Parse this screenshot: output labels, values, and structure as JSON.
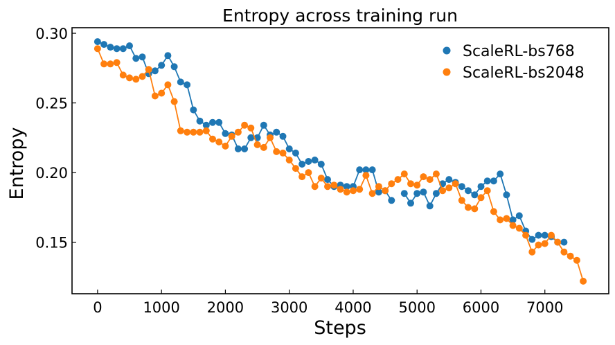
{
  "chart_data": {
    "type": "line",
    "title": "Entropy across training run",
    "xlabel": "Steps",
    "ylabel": "Entropy",
    "xlim": [
      -400,
      8000
    ],
    "ylim": [
      0.113,
      0.304
    ],
    "xticks": [
      0,
      1000,
      2000,
      3000,
      4000,
      5000,
      6000,
      7000
    ],
    "xtick_labels": [
      "0",
      "1000",
      "2000",
      "3000",
      "4000",
      "5000",
      "6000",
      "7000"
    ],
    "yticks": [
      0.15,
      0.2,
      0.25,
      0.3
    ],
    "ytick_labels": [
      "0.15",
      "0.20",
      "0.25",
      "0.30"
    ],
    "grid": false,
    "legend_position": "top-right",
    "series": [
      {
        "name": "ScaleRL-bs768",
        "color": "#1f77b4",
        "x": [
          0,
          100,
          200,
          300,
          400,
          500,
          600,
          700,
          800,
          900,
          1000,
          1100,
          1200,
          1300,
          1400,
          1500,
          1600,
          1700,
          1800,
          1900,
          2000,
          2100,
          2200,
          2300,
          2400,
          2500,
          2600,
          2700,
          2800,
          2900,
          3000,
          3100,
          3200,
          3300,
          3400,
          3500,
          3600,
          3700,
          3800,
          3900,
          4000,
          4100,
          4200,
          4300,
          4400,
          4500,
          4600,
          null,
          4800,
          4900,
          5000,
          5100,
          5200,
          5300,
          5400,
          5500,
          5600,
          5700,
          5800,
          5900,
          6000,
          6100,
          6200,
          6300,
          6400,
          6500,
          6600,
          6700,
          6800,
          6900,
          7000,
          7100,
          7200,
          7300
        ],
        "y": [
          0.294,
          0.292,
          0.29,
          0.289,
          0.289,
          0.291,
          0.282,
          0.283,
          0.271,
          0.273,
          0.277,
          0.284,
          0.276,
          0.265,
          0.263,
          0.245,
          0.237,
          0.234,
          0.236,
          0.236,
          0.228,
          0.227,
          0.217,
          0.217,
          0.225,
          0.225,
          0.234,
          0.227,
          0.229,
          0.226,
          0.217,
          0.214,
          0.206,
          0.208,
          0.209,
          0.206,
          0.195,
          0.19,
          0.191,
          0.19,
          0.19,
          0.202,
          0.202,
          0.202,
          0.186,
          0.187,
          0.18,
          null,
          0.185,
          0.178,
          0.185,
          0.186,
          0.176,
          0.185,
          0.192,
          0.195,
          0.193,
          0.19,
          0.187,
          0.184,
          0.19,
          0.194,
          0.194,
          0.199,
          0.184,
          0.166,
          0.169,
          0.158,
          0.152,
          0.155,
          0.155,
          0.154,
          0.15,
          0.15
        ]
      },
      {
        "name": "ScaleRL-bs2048",
        "color": "#ff7f0e",
        "x": [
          0,
          100,
          200,
          300,
          400,
          500,
          600,
          700,
          800,
          900,
          1000,
          1100,
          1200,
          1300,
          1400,
          1500,
          1600,
          1700,
          1800,
          1900,
          2000,
          2100,
          2200,
          2300,
          2400,
          2500,
          2600,
          2700,
          2800,
          2900,
          3000,
          3100,
          3200,
          3300,
          3400,
          3500,
          3600,
          3700,
          3800,
          3900,
          4000,
          4100,
          4200,
          4300,
          4400,
          4500,
          4600,
          4700,
          4800,
          4900,
          5000,
          5100,
          5200,
          5300,
          5400,
          5500,
          5600,
          5700,
          5800,
          5900,
          6000,
          6100,
          6200,
          6300,
          6400,
          6500,
          6600,
          6700,
          6800,
          6900,
          7000,
          7100,
          7200,
          7300,
          7400,
          7500,
          7600
        ],
        "y": [
          0.289,
          0.278,
          0.278,
          0.279,
          0.27,
          0.268,
          0.267,
          0.269,
          0.274,
          0.255,
          0.257,
          0.263,
          0.251,
          0.23,
          0.229,
          0.229,
          0.229,
          0.23,
          0.224,
          0.222,
          0.219,
          0.226,
          0.229,
          0.234,
          0.232,
          0.22,
          0.218,
          0.225,
          0.215,
          0.214,
          0.209,
          0.203,
          0.197,
          0.2,
          0.19,
          0.196,
          0.19,
          0.191,
          0.188,
          0.186,
          0.187,
          0.188,
          0.198,
          0.185,
          0.19,
          0.187,
          0.192,
          0.195,
          0.199,
          0.192,
          0.191,
          0.197,
          0.195,
          0.199,
          0.187,
          0.189,
          0.192,
          0.18,
          0.175,
          0.174,
          0.182,
          0.187,
          0.172,
          0.166,
          0.167,
          0.162,
          0.16,
          0.155,
          0.143,
          0.148,
          0.149,
          0.155,
          0.15,
          0.143,
          0.14,
          0.137,
          0.122
        ]
      }
    ]
  }
}
